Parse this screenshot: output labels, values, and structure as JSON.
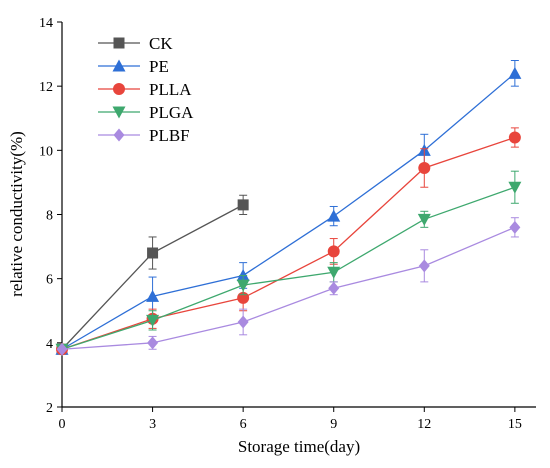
{
  "chart_data": {
    "type": "line",
    "xlabel": "Storage time(day)",
    "ylabel": "relative conductivity(%)",
    "x": [
      0,
      3,
      6,
      9,
      12,
      15
    ],
    "xlim": [
      0,
      15.7
    ],
    "ylim": [
      2,
      14
    ],
    "xticks": [
      "0",
      "3",
      "6",
      "9",
      "12",
      "15"
    ],
    "yticks": [
      "2",
      "4",
      "6",
      "8",
      "10",
      "12",
      "14"
    ],
    "legend_position": "top-left",
    "grid": false,
    "series": [
      {
        "name": "CK",
        "color": "#555555",
        "marker": "square",
        "x": [
          0,
          3,
          6
        ],
        "values": [
          3.8,
          6.8,
          8.3
        ],
        "errors": [
          0,
          0.5,
          0.3
        ]
      },
      {
        "name": "PE",
        "color": "#2e6fd6",
        "marker": "triangle-up",
        "x": [
          0,
          3,
          6,
          9,
          12,
          15
        ],
        "values": [
          3.8,
          5.45,
          6.1,
          7.95,
          10.0,
          12.4
        ],
        "errors": [
          0,
          0.6,
          0.4,
          0.3,
          0.5,
          0.4
        ]
      },
      {
        "name": "PLLA",
        "color": "#e8453c",
        "marker": "circle",
        "x": [
          0,
          3,
          6,
          9,
          12,
          15
        ],
        "values": [
          3.8,
          4.75,
          5.4,
          6.85,
          9.45,
          10.4
        ],
        "errors": [
          0,
          0.3,
          0.4,
          0.4,
          0.6,
          0.3
        ]
      },
      {
        "name": "PLGA",
        "color": "#3ea86e",
        "marker": "triangle-down",
        "x": [
          0,
          3,
          6,
          9,
          12,
          15
        ],
        "values": [
          3.8,
          4.7,
          5.8,
          6.2,
          7.85,
          8.85
        ],
        "errors": [
          0,
          0.3,
          0.3,
          0.3,
          0.25,
          0.5
        ]
      },
      {
        "name": "PLBF",
        "color": "#a98ae0",
        "marker": "diamond",
        "x": [
          0,
          3,
          6,
          9,
          12,
          15
        ],
        "values": [
          3.8,
          4.0,
          4.65,
          5.7,
          6.4,
          7.6
        ],
        "errors": [
          0,
          0.2,
          0.4,
          0.2,
          0.5,
          0.3
        ]
      }
    ]
  }
}
